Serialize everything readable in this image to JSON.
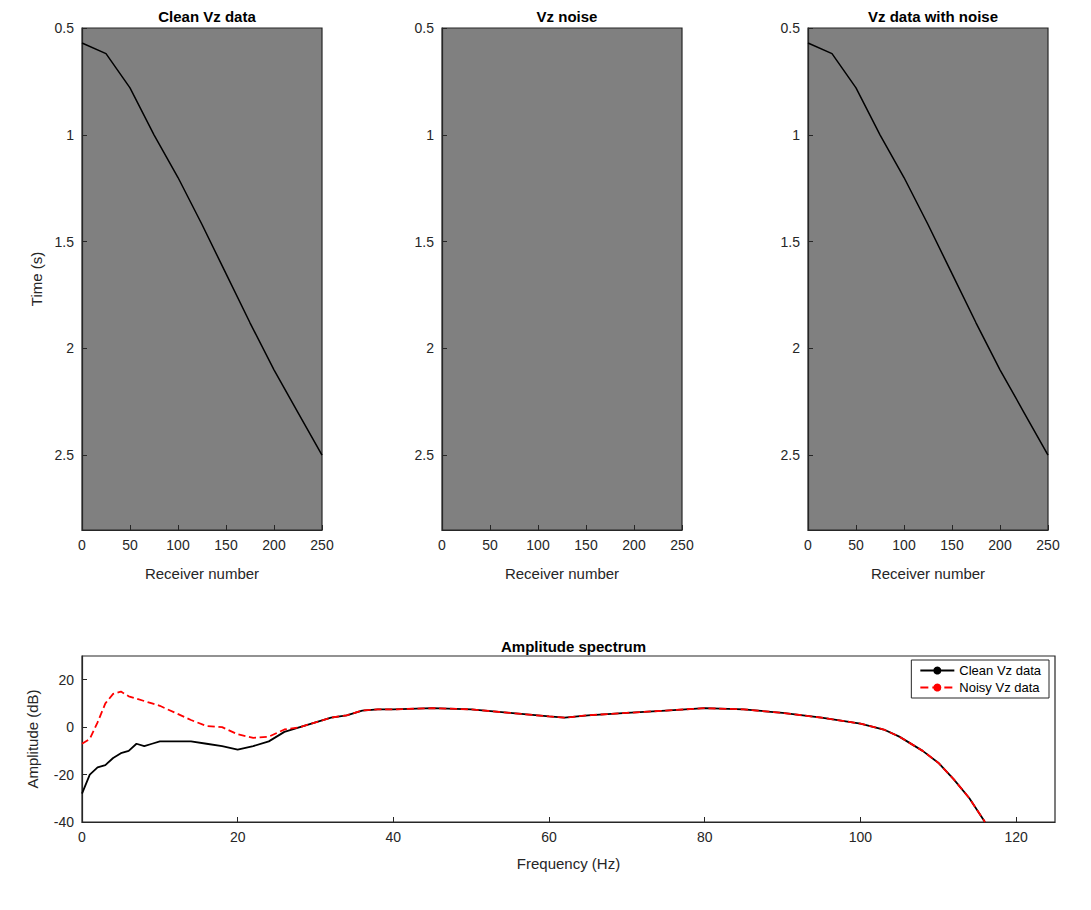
{
  "chart_data": [
    {
      "type": "line",
      "title": "Clean Vz data",
      "x_label": "Receiver number",
      "y_label": "Time (s)",
      "xlim": [
        0,
        250
      ],
      "xticks": [
        0,
        50,
        100,
        150,
        200,
        250
      ],
      "ylim": [
        0.5,
        2.85
      ],
      "yticks": [
        0.5,
        1,
        1.5,
        2,
        2.5
      ],
      "grid": false,
      "series": [
        {
          "color": "#000000",
          "line_style": "solid",
          "x": [
            0,
            25,
            50,
            75,
            100,
            125,
            150,
            175,
            200,
            225,
            250
          ],
          "values": [
            0.57,
            0.62,
            0.78,
            1.0,
            1.2,
            1.42,
            1.65,
            1.88,
            2.1,
            2.3,
            2.5
          ]
        }
      ]
    },
    {
      "type": "line",
      "title": "Vz noise",
      "x_label": "Receiver number",
      "xlim": [
        0,
        250
      ],
      "xticks": [
        0,
        50,
        100,
        150,
        200,
        250
      ],
      "ylim": [
        0.5,
        2.85
      ],
      "yticks": [
        0.5,
        1,
        1.5,
        2,
        2.5
      ],
      "grid": false,
      "series": []
    },
    {
      "type": "line",
      "title": "Vz data with noise",
      "x_label": "Receiver number",
      "xlim": [
        0,
        250
      ],
      "xticks": [
        0,
        50,
        100,
        150,
        200,
        250
      ],
      "ylim": [
        0.5,
        2.85
      ],
      "yticks": [
        0.5,
        1,
        1.5,
        2,
        2.5
      ],
      "grid": false,
      "series": [
        {
          "color": "#000000",
          "line_style": "solid",
          "x": [
            0,
            25,
            50,
            75,
            100,
            125,
            150,
            175,
            200,
            225,
            250
          ],
          "values": [
            0.57,
            0.62,
            0.78,
            1.0,
            1.2,
            1.42,
            1.65,
            1.88,
            2.1,
            2.3,
            2.5
          ]
        }
      ]
    },
    {
      "type": "line",
      "title": "Amplitude spectrum",
      "x_label": "Frequency (Hz)",
      "y_label": "Amplitude (dB)",
      "xlim": [
        0,
        125
      ],
      "xticks": [
        0,
        20,
        40,
        60,
        80,
        100,
        120
      ],
      "ylim": [
        -40,
        30
      ],
      "yticks": [
        -40,
        -20,
        0,
        20
      ],
      "grid": false,
      "legend": "upper right",
      "x": [
        0,
        1,
        2,
        3,
        4,
        5,
        6,
        7,
        8,
        9,
        10,
        12,
        14,
        16,
        18,
        20,
        22,
        24,
        26,
        28,
        30,
        32,
        34,
        36,
        38,
        40,
        45,
        50,
        55,
        60,
        62,
        65,
        70,
        75,
        80,
        85,
        90,
        95,
        100,
        103,
        105,
        108,
        110,
        112,
        114,
        116
      ],
      "series": [
        {
          "name": "Clean Vz data",
          "color": "#000000",
          "line_style": "solid",
          "values": [
            -28,
            -20,
            -17,
            -16,
            -13,
            -11,
            -10,
            -7,
            -8,
            -7,
            -6,
            -6,
            -6,
            -7,
            -8,
            -9.5,
            -8,
            -6,
            -2,
            0,
            2,
            4,
            5,
            7,
            7.5,
            7.5,
            8,
            7.5,
            6,
            4.5,
            4,
            5,
            6,
            7,
            8,
            7.5,
            6,
            4,
            1.5,
            -1,
            -4,
            -10,
            -15,
            -22,
            -30,
            -40
          ]
        },
        {
          "name": "Noisy Vz data",
          "color": "#ff0000",
          "line_style": "dashed",
          "values": [
            -7,
            -5,
            2,
            10,
            14,
            15,
            13,
            12,
            11,
            10,
            9,
            6,
            3,
            0.5,
            0,
            -3,
            -4.5,
            -4,
            -1,
            0,
            2,
            4,
            5,
            7,
            7.5,
            7.5,
            8,
            7.5,
            6,
            4.5,
            4,
            5,
            6,
            7,
            8,
            7.5,
            6,
            4,
            1.5,
            -1,
            -4,
            -10,
            -15,
            -22,
            -30,
            -40
          ]
        }
      ]
    }
  ]
}
